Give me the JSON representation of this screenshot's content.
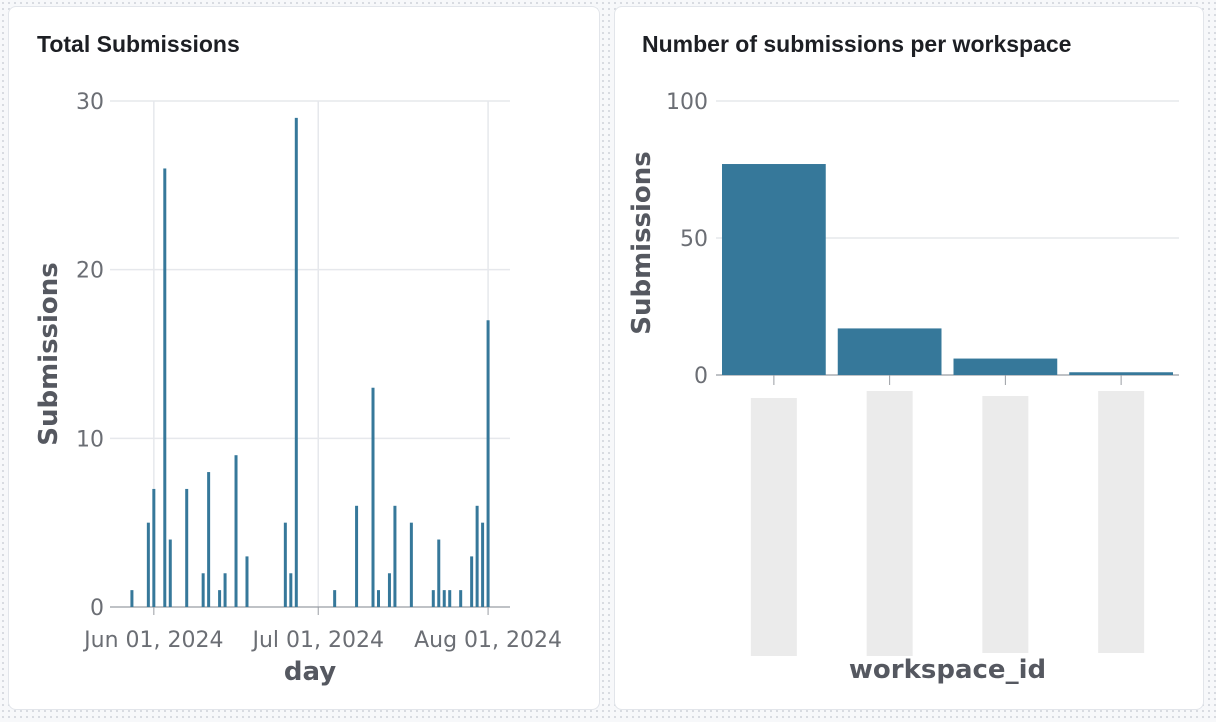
{
  "colors": {
    "bar": "#36789a",
    "grid": "#e6e8ec",
    "axis": "#999da3",
    "placeholder": "#ebebeb"
  },
  "chart_data": [
    {
      "type": "bar",
      "title": "Total Submissions",
      "xlabel": "day",
      "ylabel": "Submissions",
      "ylim": [
        0,
        30
      ],
      "yticks": [
        0,
        10,
        20,
        30
      ],
      "xlim": [
        "2024-05-24",
        "2024-08-05"
      ],
      "xticks": [
        {
          "date": "2024-06-01",
          "label": "Jun 01, 2024"
        },
        {
          "date": "2024-07-01",
          "label": "Jul 01, 2024"
        },
        {
          "date": "2024-08-01",
          "label": "Aug 01, 2024"
        }
      ],
      "grid": true,
      "data": [
        {
          "x": "2024-05-28",
          "y": 1
        },
        {
          "x": "2024-05-31",
          "y": 5
        },
        {
          "x": "2024-06-01",
          "y": 7
        },
        {
          "x": "2024-06-03",
          "y": 26
        },
        {
          "x": "2024-06-04",
          "y": 4
        },
        {
          "x": "2024-06-07",
          "y": 7
        },
        {
          "x": "2024-06-10",
          "y": 2
        },
        {
          "x": "2024-06-11",
          "y": 8
        },
        {
          "x": "2024-06-13",
          "y": 1
        },
        {
          "x": "2024-06-14",
          "y": 2
        },
        {
          "x": "2024-06-16",
          "y": 9
        },
        {
          "x": "2024-06-18",
          "y": 3
        },
        {
          "x": "2024-06-25",
          "y": 5
        },
        {
          "x": "2024-06-26",
          "y": 2
        },
        {
          "x": "2024-06-27",
          "y": 29
        },
        {
          "x": "2024-07-04",
          "y": 1
        },
        {
          "x": "2024-07-08",
          "y": 6
        },
        {
          "x": "2024-07-11",
          "y": 13
        },
        {
          "x": "2024-07-12",
          "y": 1
        },
        {
          "x": "2024-07-14",
          "y": 2
        },
        {
          "x": "2024-07-15",
          "y": 6
        },
        {
          "x": "2024-07-18",
          "y": 5
        },
        {
          "x": "2024-07-22",
          "y": 1
        },
        {
          "x": "2024-07-23",
          "y": 4
        },
        {
          "x": "2024-07-24",
          "y": 1
        },
        {
          "x": "2024-07-25",
          "y": 1
        },
        {
          "x": "2024-07-27",
          "y": 1
        },
        {
          "x": "2024-07-29",
          "y": 3
        },
        {
          "x": "2024-07-30",
          "y": 6
        },
        {
          "x": "2024-07-31",
          "y": 5
        },
        {
          "x": "2024-08-01",
          "y": 17
        }
      ]
    },
    {
      "type": "bar",
      "title": "Number of submissions per workspace",
      "xlabel": "workspace_id",
      "ylabel": "Submissions",
      "ylim": [
        0,
        100
      ],
      "yticks": [
        0,
        50,
        100
      ],
      "grid": true,
      "categories": [
        "",
        "",
        "",
        ""
      ],
      "values": [
        77,
        17,
        6,
        1
      ]
    }
  ]
}
